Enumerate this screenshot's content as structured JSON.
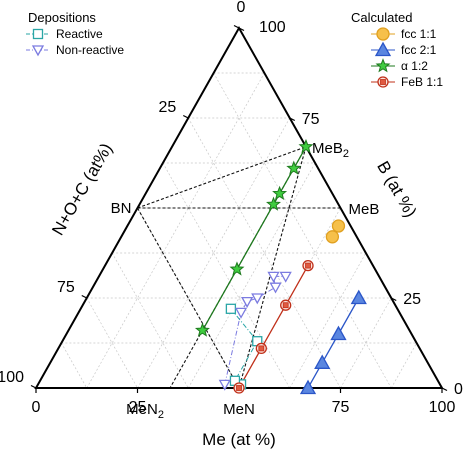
{
  "chart_data": {
    "type": "scatter",
    "title": "",
    "subtitle": "",
    "coordinate_system": "ternary",
    "grid": true,
    "axes": {
      "left": {
        "label": "N+O+C (at%)",
        "ticks": [
          "0",
          "25",
          "75",
          "100"
        ]
      },
      "right": {
        "label": "B (at %)",
        "ticks": [
          "0",
          "25",
          "75",
          "100"
        ]
      },
      "bottom": {
        "label": "Me (at %)",
        "ticks": [
          "0",
          "25",
          "75",
          "100"
        ]
      }
    },
    "point_labels": [
      {
        "text": "BN",
        "me": 0,
        "b": 50,
        "n": 50
      },
      {
        "text": "MeB",
        "sub": "2",
        "me": 33,
        "b": 67,
        "n": 0
      },
      {
        "text": "MeB",
        "me": 50,
        "b": 50,
        "n": 0
      },
      {
        "text": "MeN",
        "sub": "2",
        "me": 33,
        "b": 0,
        "n": 67
      },
      {
        "text": "MeN",
        "me": 50,
        "b": 0,
        "n": 50
      }
    ],
    "tie_lines": [
      {
        "from": {
          "me": 0,
          "b": 50,
          "n": 50
        },
        "to": {
          "me": 33,
          "b": 67,
          "n": 0
        }
      },
      {
        "from": {
          "me": 0,
          "b": 50,
          "n": 50
        },
        "to": {
          "me": 50,
          "b": 50,
          "n": 0
        }
      },
      {
        "from": {
          "me": 0,
          "b": 50,
          "n": 50
        },
        "to": {
          "me": 50,
          "b": 0,
          "n": 50
        }
      },
      {
        "from": {
          "me": 33,
          "b": 67,
          "n": 0
        },
        "to": {
          "me": 50,
          "b": 0,
          "n": 50
        }
      },
      {
        "from": {
          "me": 33,
          "b": 67,
          "n": 0
        },
        "to": {
          "me": 33,
          "b": 0,
          "n": 67
        }
      }
    ],
    "legends": [
      {
        "title": "Depositions",
        "position": "top-left",
        "entries": [
          {
            "name": "Reactive",
            "series": "reactive"
          },
          {
            "name": "Non-reactive",
            "series": "nonreactive"
          }
        ]
      },
      {
        "title": "Calculated",
        "position": "top-right",
        "entries": [
          {
            "name": "fcc 1:1",
            "series": "fcc11"
          },
          {
            "name": "fcc 2:1",
            "series": "fcc21"
          },
          {
            "name": "α 1:2",
            "series": "alpha12"
          },
          {
            "name": "FeB 1:1",
            "series": "feb11"
          }
        ]
      }
    ],
    "series": [
      {
        "id": "reactive",
        "name": "Reactive",
        "marker": "square",
        "color": "#2aa6a6",
        "fill": "none",
        "line": "dashdot",
        "points": [
          {
            "me": 50,
            "b": 1,
            "n": 49
          },
          {
            "me": 48,
            "b": 2,
            "n": 50
          },
          {
            "me": 48,
            "b": 13,
            "n": 39
          },
          {
            "me": 37,
            "b": 22,
            "n": 41
          }
        ]
      },
      {
        "id": "nonreactive",
        "name": "Non-reactive",
        "marker": "triangle-down",
        "color": "#7b7be0",
        "fill": "none",
        "line": "dashdot",
        "points": [
          {
            "me": 46,
            "b": 1,
            "n": 53
          },
          {
            "me": 40,
            "b": 21,
            "n": 39
          },
          {
            "me": 40,
            "b": 24,
            "n": 36
          },
          {
            "me": 42,
            "b": 25,
            "n": 33
          },
          {
            "me": 45,
            "b": 28,
            "n": 27
          },
          {
            "me": 43,
            "b": 31,
            "n": 26
          },
          {
            "me": 46,
            "b": 31,
            "n": 23
          }
        ]
      },
      {
        "id": "fcc11",
        "name": "fcc 1:1",
        "marker": "circle",
        "color": "#e0a020",
        "fill": "#f6c04a",
        "line": "none",
        "points": [
          {
            "me": 52,
            "b": 45,
            "n": 3
          },
          {
            "me": 52,
            "b": 42,
            "n": 6
          }
        ]
      },
      {
        "id": "fcc21",
        "name": "fcc 2:1",
        "marker": "triangle-up",
        "color": "#2b56c8",
        "fill": "#5a86e0",
        "line": "solid",
        "points": [
          {
            "me": 67,
            "b": 0,
            "n": 33
          },
          {
            "me": 67,
            "b": 7,
            "n": 26
          },
          {
            "me": 67,
            "b": 15,
            "n": 18
          },
          {
            "me": 67,
            "b": 25,
            "n": 8
          }
        ]
      },
      {
        "id": "alpha12",
        "name": "α 1:2",
        "marker": "star",
        "color": "#1e7a1e",
        "fill": "#3fcc3f",
        "line": "solid",
        "points": [
          {
            "me": 33,
            "b": 67,
            "n": 0
          },
          {
            "me": 33,
            "b": 61,
            "n": 6
          },
          {
            "me": 33,
            "b": 54,
            "n": 13
          },
          {
            "me": 33,
            "b": 51,
            "n": 16
          },
          {
            "me": 33,
            "b": 33,
            "n": 34
          },
          {
            "me": 33,
            "b": 16,
            "n": 51
          }
        ]
      },
      {
        "id": "feb11",
        "name": "FeB 1:1",
        "marker": "square-circle",
        "color": "#c0301a",
        "fill": "#e05a40",
        "line": "solid",
        "points": [
          {
            "me": 50,
            "b": 0,
            "n": 50
          },
          {
            "me": 50,
            "b": 11,
            "n": 39
          },
          {
            "me": 50,
            "b": 23,
            "n": 27
          },
          {
            "me": 50,
            "b": 34,
            "n": 16
          }
        ]
      }
    ]
  }
}
